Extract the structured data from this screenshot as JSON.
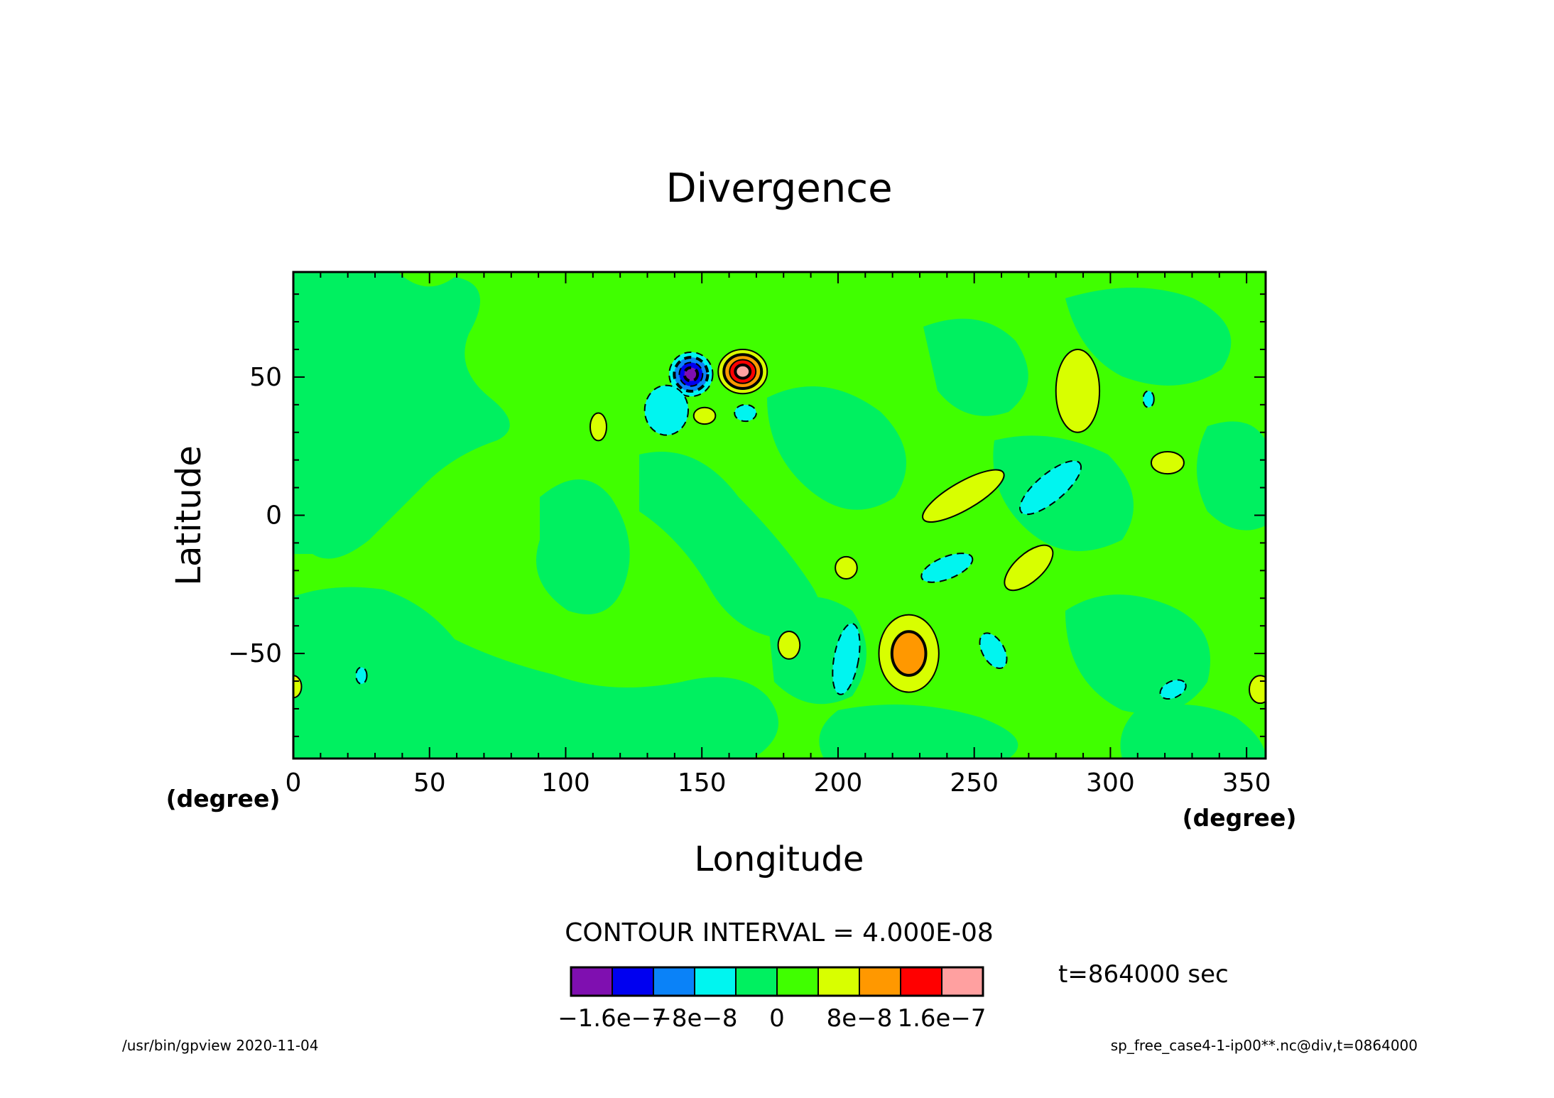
{
  "chart_data": {
    "type": "heatmap",
    "title": "Divergence",
    "xlabel": "Longitude",
    "ylabel": "Latitude",
    "x_unit": "(degree)",
    "y_unit": "(degree)",
    "xlim": [
      0,
      357
    ],
    "ylim": [
      -88,
      88
    ],
    "x_ticks": [
      0,
      50,
      100,
      150,
      200,
      250,
      300,
      350
    ],
    "y_ticks": [
      -50,
      0,
      50
    ],
    "contour_interval_label": "CONTOUR INTERVAL = 4.000E-08",
    "time_label": "t=864000 sec",
    "colorbar": {
      "colors": [
        "#7f0fb0",
        "#0000f0",
        "#0a82f8",
        "#00f5f0",
        "#00f060",
        "#40ff00",
        "#d8ff00",
        "#ff9800",
        "#ff0000",
        "#ffa0a0"
      ],
      "labels": [
        "−1.6e−7",
        "−8e−8",
        "0",
        "8e−8",
        "1.6e−7"
      ]
    },
    "features": [
      {
        "lon": 146,
        "lat": 51,
        "rx": 8,
        "ry": 8,
        "levels": [
          -4,
          -3,
          -2,
          -1
        ],
        "sign": "negative"
      },
      {
        "lon": 165,
        "lat": 52,
        "rx": 9,
        "ry": 8,
        "levels": [
          1,
          2,
          3,
          4
        ],
        "sign": "positive"
      },
      {
        "lon": 226,
        "lat": -50,
        "rx": 11,
        "ry": 14,
        "levels": [
          1,
          2
        ],
        "sign": "positive"
      },
      {
        "lon": 288,
        "lat": 45,
        "rx": 8,
        "ry": 15,
        "levels": [
          1
        ],
        "sign": "positive"
      },
      {
        "lon": 246,
        "lat": 7,
        "rx": 17,
        "ry": 5,
        "levels": [
          1
        ],
        "sign": "positive",
        "rot": -30
      },
      {
        "lon": 278,
        "lat": 10,
        "rx": 14,
        "ry": 5,
        "levels": [
          -1
        ],
        "sign": "negative",
        "rot": -40
      },
      {
        "lon": 270,
        "lat": -19,
        "rx": 11,
        "ry": 5,
        "levels": [
          1
        ],
        "sign": "positive",
        "rot": -42
      },
      {
        "lon": 240,
        "lat": -19,
        "rx": 10,
        "ry": 4,
        "levels": [
          -1
        ],
        "sign": "negative",
        "rot": -22
      },
      {
        "lon": 203,
        "lat": -52,
        "rx": 4.5,
        "ry": 13,
        "levels": [
          -1
        ],
        "sign": "negative",
        "rot": 10
      },
      {
        "lon": 257,
        "lat": -49,
        "rx": 4,
        "ry": 7,
        "levels": [
          -1
        ],
        "sign": "negative",
        "rot": -30
      },
      {
        "lon": 182,
        "lat": -47,
        "rx": 4,
        "ry": 5,
        "levels": [
          1
        ],
        "sign": "positive"
      },
      {
        "lon": 203,
        "lat": -19,
        "rx": 4,
        "ry": 4,
        "levels": [
          1
        ],
        "sign": "positive"
      },
      {
        "lon": 112,
        "lat": 32,
        "rx": 3,
        "ry": 5,
        "levels": [
          1
        ],
        "sign": "positive"
      },
      {
        "lon": 151,
        "lat": 36,
        "rx": 4,
        "ry": 3,
        "levels": [
          1
        ],
        "sign": "positive"
      },
      {
        "lon": 166,
        "lat": 37,
        "rx": 4,
        "ry": 3,
        "levels": [
          -1
        ],
        "sign": "negative"
      },
      {
        "lon": 137,
        "lat": 38,
        "rx": 8,
        "ry": 9,
        "levels": [
          -1
        ],
        "sign": "negative"
      },
      {
        "lon": 321,
        "lat": 19,
        "rx": 6,
        "ry": 4,
        "levels": [
          1
        ],
        "sign": "positive"
      },
      {
        "lon": 314,
        "lat": 42,
        "rx": 2,
        "ry": 3,
        "levels": [
          -1
        ],
        "sign": "negative"
      },
      {
        "lon": 323,
        "lat": -63,
        "rx": 5,
        "ry": 3,
        "levels": [
          -1
        ],
        "sign": "negative",
        "rot": -25
      },
      {
        "lon": 25,
        "lat": -58,
        "rx": 2,
        "ry": 3,
        "levels": [
          -1
        ],
        "sign": "negative"
      },
      {
        "lon": 355,
        "lat": -63,
        "rx": 4,
        "ry": 5,
        "levels": [
          1
        ],
        "sign": "positive"
      },
      {
        "lon": 0,
        "lat": -62,
        "rx": 3,
        "ry": 4,
        "levels": [
          1
        ],
        "sign": "positive"
      }
    ]
  },
  "footer": {
    "left": "/usr/bin/gpview   2020-11-04",
    "right": "sp_free_case4-1-ip00**.nc@div,t=0864000"
  }
}
